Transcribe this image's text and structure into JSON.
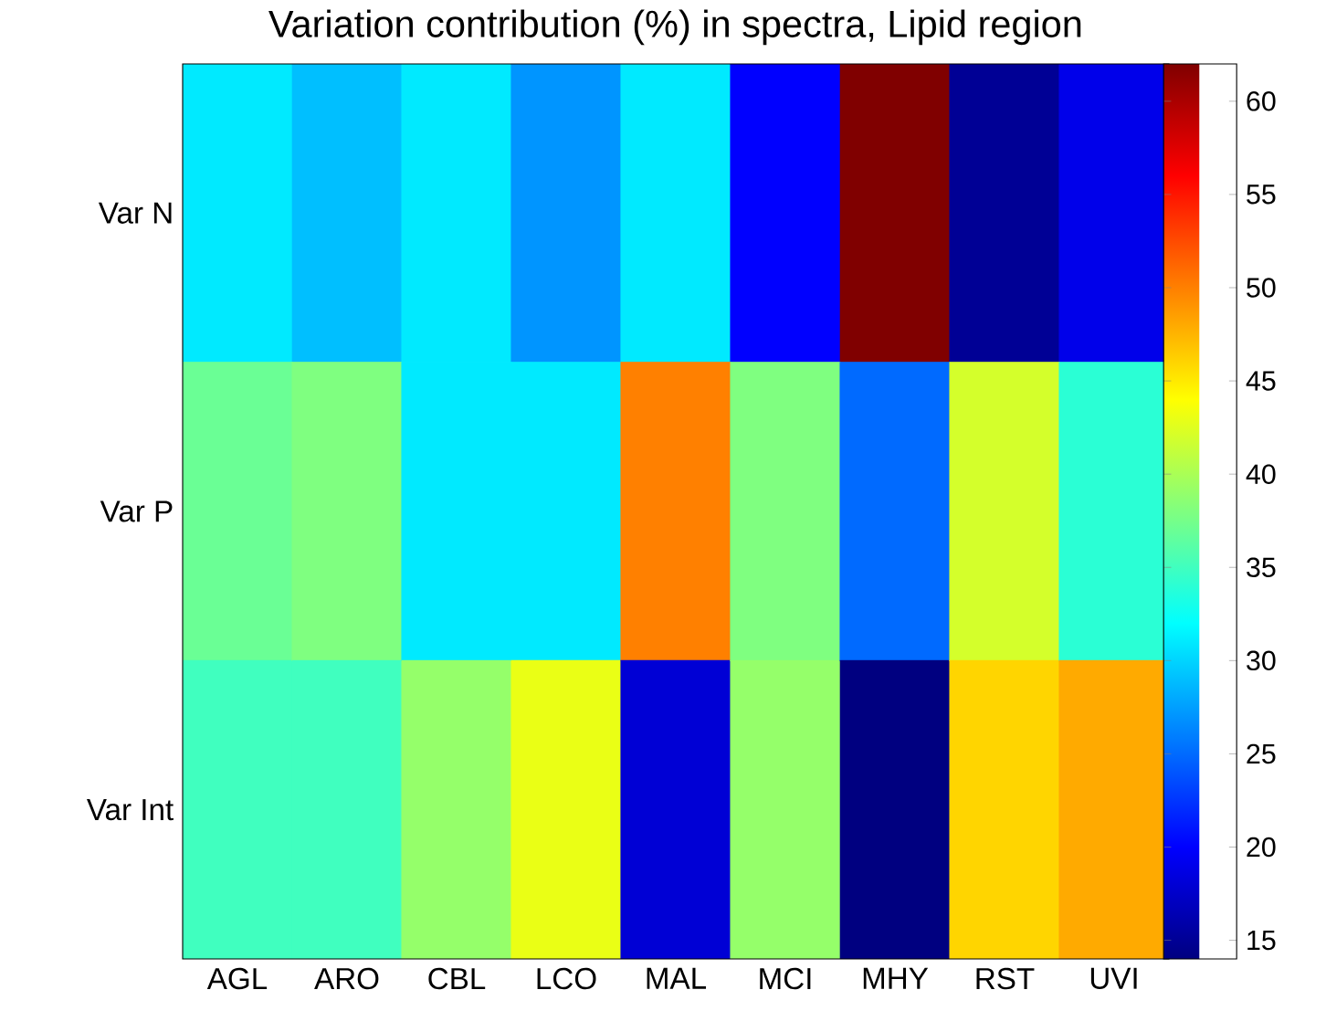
{
  "chart_data": {
    "type": "heatmap",
    "title": "Variation contribution (%) in spectra, Lipid region",
    "categories": [
      "AGL",
      "ARO",
      "CBL",
      "LCO",
      "MAL",
      "MCI",
      "MHY",
      "RST",
      "UVI"
    ],
    "y_categories": [
      "Var N",
      "Var P",
      "Var Int"
    ],
    "cells": [
      [
        31,
        29,
        31,
        27,
        31,
        20,
        62,
        15,
        19
      ],
      [
        37,
        38,
        31,
        31,
        50,
        38,
        25,
        42,
        34
      ],
      [
        35,
        35,
        39,
        43,
        18,
        39,
        14,
        46,
        48
      ]
    ],
    "clim": [
      14,
      62
    ],
    "cticks": [
      15,
      20,
      25,
      30,
      35,
      40,
      45,
      50,
      55,
      60
    ]
  }
}
